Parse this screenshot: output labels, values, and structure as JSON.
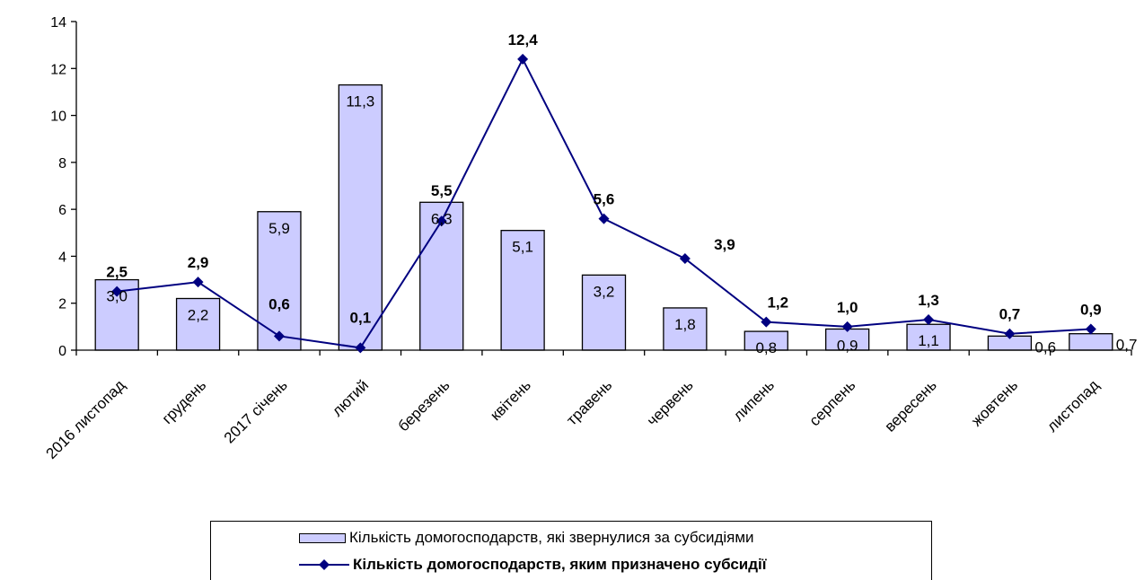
{
  "chart_data": {
    "type": "bar+line",
    "categories": [
      "2016 листопад",
      "грудень",
      "2017 січень",
      "лютий",
      "березень",
      "квітень",
      "травень",
      "червень",
      "липень",
      "серпень",
      "вересень",
      "жовтень",
      "листопад"
    ],
    "series": [
      {
        "name": "Кількість домогосподарств, які звернулися за субсидіями",
        "kind": "bar",
        "values": [
          3.0,
          2.2,
          5.9,
          11.3,
          6.3,
          5.1,
          3.2,
          1.8,
          0.8,
          0.9,
          1.1,
          0.6,
          0.7
        ],
        "value_labels": [
          "3,0",
          "2,2",
          "5,9",
          "11,3",
          "6,3",
          "5,1",
          "3,2",
          "1,8",
          "0,8",
          "0,9",
          "1,1",
          "0,6",
          "0,7"
        ],
        "color": "#ccccff"
      },
      {
        "name": "Кількість домогосподарств, яким призначено субсидії",
        "kind": "line",
        "values": [
          2.5,
          2.9,
          0.6,
          0.1,
          5.5,
          12.4,
          5.6,
          3.9,
          1.2,
          1.0,
          1.3,
          0.7,
          0.9
        ],
        "value_labels": [
          "2,5",
          "2,9",
          "0,6",
          "0,1",
          "5,5",
          "12,4",
          "5,6",
          "3,9",
          "1,2",
          "1,0",
          "1,3",
          "0,7",
          "0,9"
        ],
        "color": "#000080"
      }
    ],
    "y_ticks": [
      "0",
      "2",
      "4",
      "6",
      "8",
      "10",
      "12",
      "14"
    ],
    "ylim": [
      0,
      14
    ],
    "grid": false,
    "legend_position": "bottom"
  },
  "legend": {
    "bar_label": "Кількість домогосподарств, які звернулися за субсидіями",
    "line_label": "Кількість домогосподарств, яким призначено субсидії"
  }
}
